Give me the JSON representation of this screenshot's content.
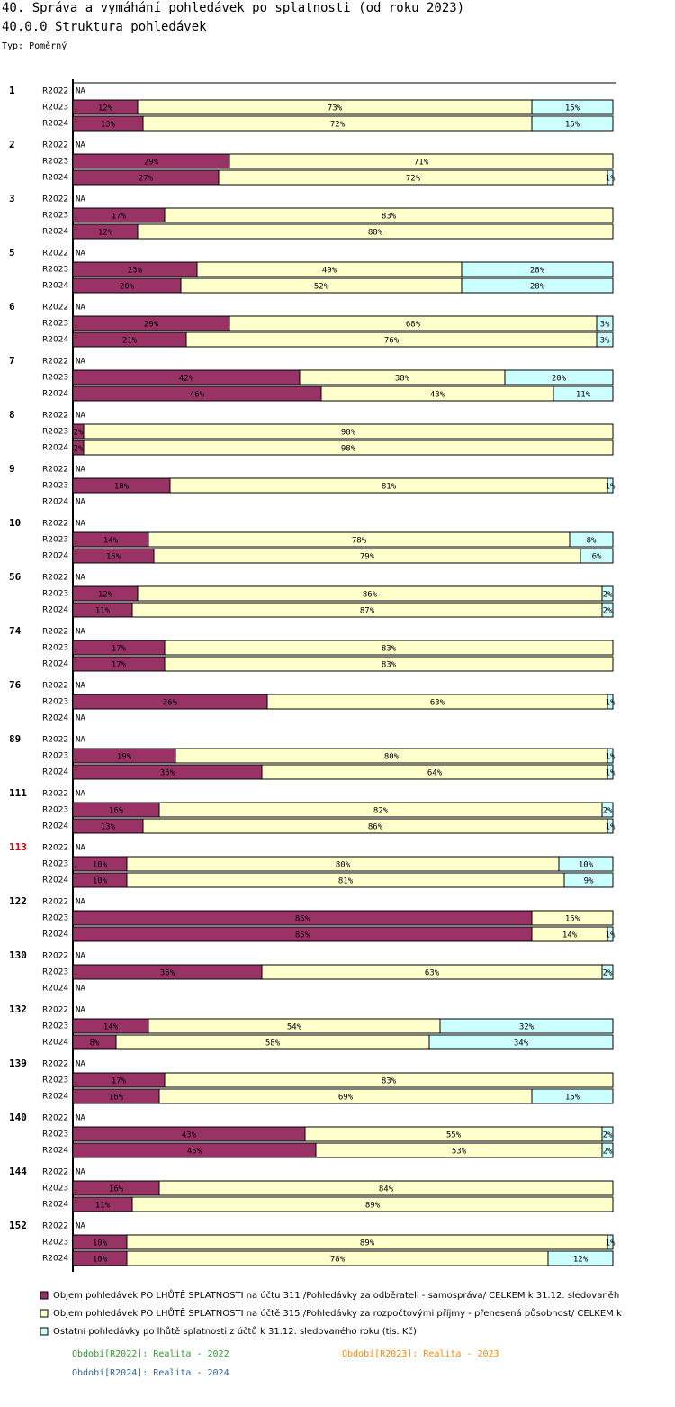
{
  "chart_data": {
    "type": "bar",
    "title": "40. Správa a vymáhání pohledávek po splatnosti (od roku 2023)",
    "subtitle": "40.0.0 Struktura pohledávek",
    "note": "Typ: Poměrný",
    "na_label": "NA",
    "xlim": [
      0,
      100
    ],
    "categories": [
      "1",
      "2",
      "3",
      "5",
      "6",
      "7",
      "8",
      "9",
      "10",
      "56",
      "74",
      "76",
      "89",
      "111",
      "113",
      "122",
      "130",
      "132",
      "139",
      "140",
      "144",
      "152"
    ],
    "category_colors": [
      "#000",
      "#000",
      "#000",
      "#000",
      "#000",
      "#000",
      "#000",
      "#000",
      "#000",
      "#000",
      "#000",
      "#000",
      "#000",
      "#000",
      "#e00000",
      "#000",
      "#000",
      "#000",
      "#000",
      "#000",
      "#000",
      "#000"
    ],
    "periods": [
      "R2022",
      "R2023",
      "R2024"
    ],
    "series": [
      {
        "name": "Objem pohledávek PO LHŮTĚ SPLATNOSTI na účtu 311 /Pohledávky za odběrateli - samospráva/ CELKEM k 31.12. sledovaněh",
        "color": "#993366",
        "values": [
          [
            null,
            12,
            13
          ],
          [
            null,
            29,
            27
          ],
          [
            null,
            17,
            12
          ],
          [
            null,
            23,
            20
          ],
          [
            null,
            29,
            21
          ],
          [
            null,
            42,
            46
          ],
          [
            null,
            2,
            2
          ],
          [
            null,
            18,
            null
          ],
          [
            null,
            14,
            15
          ],
          [
            null,
            12,
            11
          ],
          [
            null,
            17,
            17
          ],
          [
            null,
            36,
            null
          ],
          [
            null,
            19,
            35
          ],
          [
            null,
            16,
            13
          ],
          [
            null,
            10,
            10
          ],
          [
            null,
            85,
            85
          ],
          [
            null,
            35,
            null
          ],
          [
            null,
            14,
            8
          ],
          [
            null,
            17,
            16
          ],
          [
            null,
            43,
            45
          ],
          [
            null,
            16,
            11
          ],
          [
            null,
            10,
            10
          ]
        ],
        "value_labels": [
          [
            null,
            "12%",
            "13%"
          ],
          [
            null,
            "29%",
            "27%"
          ],
          [
            null,
            "17%",
            "12%"
          ],
          [
            null,
            "23%",
            "20%"
          ],
          [
            null,
            "29%",
            "21%"
          ],
          [
            null,
            "42%",
            "46%"
          ],
          [
            null,
            "2%",
            "2%"
          ],
          [
            null,
            "18%",
            null
          ],
          [
            null,
            "14%",
            "15%"
          ],
          [
            null,
            "12%",
            "11%"
          ],
          [
            null,
            "17%",
            "17%"
          ],
          [
            null,
            "36%",
            null
          ],
          [
            null,
            "19%",
            "35%"
          ],
          [
            null,
            "16%",
            "13%"
          ],
          [
            null,
            "10%",
            "10%"
          ],
          [
            null,
            "85%",
            "85%"
          ],
          [
            null,
            "35%",
            null
          ],
          [
            null,
            "14%",
            "8%"
          ],
          [
            null,
            "17%",
            "16%"
          ],
          [
            null,
            "43%",
            "45%"
          ],
          [
            null,
            "16%",
            "11%"
          ],
          [
            null,
            "10%",
            "10%"
          ]
        ]
      },
      {
        "name": "Objem pohledávek PO LHŮTĚ SPLATNOSTI na účtě 315 /Pohledávky za rozpočtovými příjmy - přenesená působnost/ CELKEM k",
        "color": "#ffffcc",
        "values": [
          [
            null,
            73,
            72
          ],
          [
            null,
            71,
            72
          ],
          [
            null,
            83,
            88
          ],
          [
            null,
            49,
            52
          ],
          [
            null,
            68,
            76
          ],
          [
            null,
            38,
            43
          ],
          [
            null,
            98,
            98
          ],
          [
            null,
            81,
            null
          ],
          [
            null,
            78,
            79
          ],
          [
            null,
            86,
            87
          ],
          [
            null,
            83,
            83
          ],
          [
            null,
            63,
            null
          ],
          [
            null,
            80,
            64
          ],
          [
            null,
            82,
            86
          ],
          [
            null,
            80,
            81
          ],
          [
            null,
            15,
            14
          ],
          [
            null,
            63,
            null
          ],
          [
            null,
            54,
            58
          ],
          [
            null,
            83,
            69
          ],
          [
            null,
            55,
            53
          ],
          [
            null,
            84,
            89
          ],
          [
            null,
            89,
            78
          ]
        ],
        "value_labels": [
          [
            null,
            "73%",
            "72%"
          ],
          [
            null,
            "71%",
            "72%"
          ],
          [
            null,
            "83%",
            "88%"
          ],
          [
            null,
            "49%",
            "52%"
          ],
          [
            null,
            "68%",
            "76%"
          ],
          [
            null,
            "38%",
            "43%"
          ],
          [
            null,
            "98%",
            "98%"
          ],
          [
            null,
            "81%",
            null
          ],
          [
            null,
            "78%",
            "79%"
          ],
          [
            null,
            "86%",
            "87%"
          ],
          [
            null,
            "83%",
            "83%"
          ],
          [
            null,
            "63%",
            null
          ],
          [
            null,
            "80%",
            "64%"
          ],
          [
            null,
            "82%",
            "86%"
          ],
          [
            null,
            "80%",
            "81%"
          ],
          [
            null,
            "15%",
            "14%"
          ],
          [
            null,
            "63%",
            null
          ],
          [
            null,
            "54%",
            "58%"
          ],
          [
            null,
            "83%",
            "69%"
          ],
          [
            null,
            "55%",
            "53%"
          ],
          [
            null,
            "84%",
            "89%"
          ],
          [
            null,
            "89%",
            "78%"
          ]
        ]
      },
      {
        "name": "Ostatní pohledávky po lhůtě splatnosti z účtů k 31.12. sledovaného roku (tis. Kč)",
        "color": "#ccffff",
        "values": [
          [
            null,
            15,
            15
          ],
          [
            null,
            null,
            1
          ],
          [
            null,
            null,
            null
          ],
          [
            null,
            28,
            28
          ],
          [
            null,
            3,
            3
          ],
          [
            null,
            20,
            11
          ],
          [
            null,
            null,
            null
          ],
          [
            null,
            1,
            null
          ],
          [
            null,
            8,
            6
          ],
          [
            null,
            2,
            2
          ],
          [
            null,
            null,
            null
          ],
          [
            null,
            1,
            null
          ],
          [
            null,
            1,
            1
          ],
          [
            null,
            2,
            1
          ],
          [
            null,
            10,
            9
          ],
          [
            null,
            null,
            1
          ],
          [
            null,
            2,
            null
          ],
          [
            null,
            32,
            34
          ],
          [
            null,
            null,
            15
          ],
          [
            null,
            2,
            2
          ],
          [
            null,
            null,
            null
          ],
          [
            null,
            1,
            12
          ]
        ],
        "value_labels": [
          [
            null,
            "15%",
            "15%"
          ],
          [
            null,
            null,
            "1%"
          ],
          [
            null,
            null,
            null
          ],
          [
            null,
            "28%",
            "28%"
          ],
          [
            null,
            "3%",
            "3%"
          ],
          [
            null,
            "20%",
            "11%"
          ],
          [
            null,
            null,
            null
          ],
          [
            null,
            "1%",
            null
          ],
          [
            null,
            "8%",
            "6%"
          ],
          [
            null,
            "2%",
            "2%"
          ],
          [
            null,
            null,
            null
          ],
          [
            null,
            "1%",
            null
          ],
          [
            null,
            "1%",
            "1%"
          ],
          [
            null,
            "2%",
            "1%"
          ],
          [
            null,
            "10%",
            "9%"
          ],
          [
            null,
            null,
            "1%"
          ],
          [
            null,
            "2%",
            null
          ],
          [
            null,
            "32%",
            "34%"
          ],
          [
            null,
            null,
            "15%"
          ],
          [
            null,
            "2%",
            "2%"
          ],
          [
            null,
            null,
            null
          ],
          [
            null,
            "1%",
            "12%"
          ]
        ]
      }
    ],
    "period_legend": [
      {
        "text": "Období[R2022]: Realita - 2022",
        "color": "#339933"
      },
      {
        "text": "Období[R2023]: Realita - 2023",
        "color": "#ff8800"
      },
      {
        "text": "Období[R2024]: Realita - 2024",
        "color": "#336699"
      }
    ]
  }
}
